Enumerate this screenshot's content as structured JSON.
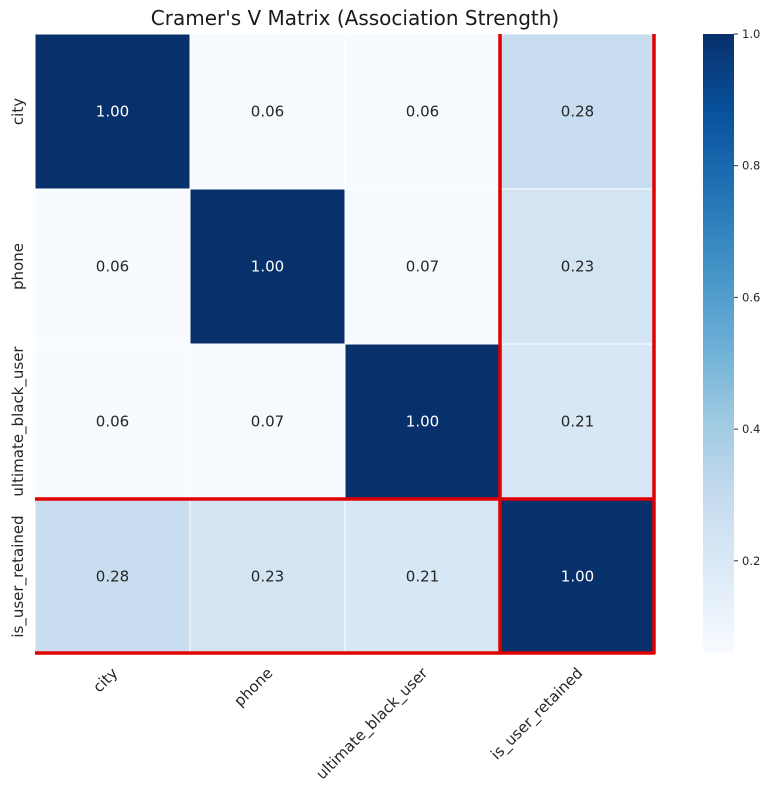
{
  "chart_data": {
    "type": "heatmap",
    "title": "Cramer's V Matrix (Association Strength)",
    "xlabel": "",
    "ylabel": "",
    "row_labels": [
      "city",
      "phone",
      "ultimate_black_user",
      "is_user_retained"
    ],
    "col_labels": [
      "city",
      "phone",
      "ultimate_black_user",
      "is_user_retained"
    ],
    "values": [
      [
        1.0,
        0.06,
        0.06,
        0.28
      ],
      [
        0.06,
        1.0,
        0.07,
        0.23
      ],
      [
        0.06,
        0.07,
        1.0,
        0.21
      ],
      [
        0.28,
        0.23,
        0.21,
        1.0
      ]
    ],
    "annotation_format": "2 decimals",
    "colormap": "Blues",
    "color_range": [
      0.06,
      1.0
    ],
    "colorbar_ticks": [
      "0.2",
      "0.4",
      "0.6",
      "0.8",
      "1.0"
    ],
    "colorbar_tick_values": [
      0.2,
      0.4,
      0.6,
      0.8,
      1.0
    ],
    "highlight": {
      "row": "is_user_retained",
      "col": "is_user_retained",
      "color": "#e00000"
    },
    "grid": true
  }
}
